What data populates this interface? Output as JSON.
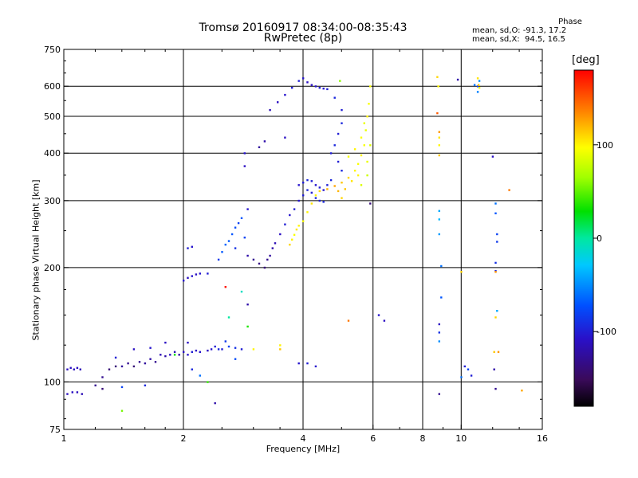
{
  "chart_data": {
    "type": "scatter",
    "title": "Tromsø 20160917 08:34:00-08:35:43",
    "subtitle": "RwPretec (8p)",
    "xlabel": "Frequency [MHz]",
    "ylabel": "Stationary phase Virtual Height [km]",
    "x_scale": "log",
    "y_scale": "log",
    "xlim": [
      1,
      16
    ],
    "ylim": [
      75,
      750
    ],
    "x_ticks": [
      "1",
      "2",
      "4",
      "6",
      "8",
      "10",
      "16"
    ],
    "x_tick_values": [
      1,
      2,
      4,
      6,
      8,
      10,
      16
    ],
    "x_gridlines": [
      2,
      4,
      6,
      8,
      10
    ],
    "y_ticks": [
      "750",
      "600",
      "500",
      "400",
      "300",
      "200",
      "100",
      "75"
    ],
    "y_tick_values": [
      750,
      600,
      500,
      400,
      300,
      200,
      100,
      75
    ],
    "y_gridlines": [
      100,
      200,
      300,
      400,
      500,
      600
    ],
    "grid": true,
    "phase_stats": {
      "heading": "Phase",
      "line_o": "mean, sd,O: -91.3, 17.2",
      "line_x": "mean, sd,X:  94.5, 16.5"
    },
    "colorbar": {
      "label": "[deg]",
      "range": [
        -180,
        180
      ],
      "ticks": [
        "100",
        "0",
        "-100"
      ],
      "tick_values": [
        100,
        0,
        -100
      ]
    },
    "series": [
      {
        "points": [
          [
            1.02,
            108,
            -110
          ],
          [
            1.04,
            109,
            -110
          ],
          [
            1.06,
            108,
            -112
          ],
          [
            1.08,
            109,
            -110
          ],
          [
            1.1,
            108,
            -115
          ],
          [
            1.02,
            93,
            -112
          ],
          [
            1.05,
            94,
            -110
          ],
          [
            1.08,
            94,
            -112
          ],
          [
            1.11,
            93,
            -115
          ],
          [
            1.2,
            98,
            -130
          ],
          [
            1.25,
            103,
            -130
          ],
          [
            1.3,
            108,
            -140
          ],
          [
            1.35,
            110,
            -140
          ],
          [
            1.4,
            110,
            -125
          ],
          [
            1.45,
            112,
            -130
          ],
          [
            1.5,
            110,
            -140
          ],
          [
            1.55,
            113,
            -130
          ],
          [
            1.6,
            112,
            -125
          ],
          [
            1.65,
            115,
            -120
          ],
          [
            1.7,
            113,
            -130
          ],
          [
            1.75,
            118,
            -115
          ],
          [
            1.8,
            117,
            -120
          ],
          [
            1.85,
            118,
            -110
          ],
          [
            1.9,
            120,
            -115
          ],
          [
            1.95,
            118,
            -120
          ],
          [
            2.0,
            120,
            -110
          ],
          [
            2.05,
            118,
            -105
          ],
          [
            2.1,
            120,
            -100
          ],
          [
            2.15,
            121,
            -110
          ],
          [
            2.2,
            120,
            -105
          ],
          [
            2.3,
            121,
            -110
          ],
          [
            2.35,
            122,
            -105
          ],
          [
            2.4,
            124,
            -100
          ],
          [
            2.45,
            122,
            -95
          ],
          [
            2.5,
            122,
            -100
          ],
          [
            2.55,
            128,
            -85
          ],
          [
            2.6,
            124,
            -80
          ],
          [
            2.7,
            123,
            -90
          ],
          [
            2.8,
            122,
            -100
          ],
          [
            1.35,
            116,
            -100
          ],
          [
            1.5,
            122,
            -110
          ],
          [
            1.65,
            123,
            -105
          ],
          [
            1.8,
            127,
            -110
          ],
          [
            2.05,
            127,
            -110
          ],
          [
            1.4,
            97,
            -80
          ],
          [
            1.6,
            98,
            -95
          ],
          [
            1.25,
            96,
            -140
          ],
          [
            2.0,
            185,
            -105
          ],
          [
            2.05,
            188,
            -110
          ],
          [
            2.1,
            190,
            -105
          ],
          [
            2.15,
            192,
            -110
          ],
          [
            2.2,
            193,
            -105
          ],
          [
            2.3,
            193,
            -100
          ],
          [
            2.05,
            225,
            -100
          ],
          [
            2.1,
            227,
            -105
          ],
          [
            2.45,
            210,
            -85
          ],
          [
            2.5,
            220,
            -70
          ],
          [
            2.55,
            230,
            -65
          ],
          [
            2.6,
            235,
            -70
          ],
          [
            2.65,
            245,
            -70
          ],
          [
            2.7,
            255,
            -75
          ],
          [
            2.75,
            262,
            -80
          ],
          [
            2.8,
            270,
            -70
          ],
          [
            2.85,
            240,
            -80
          ],
          [
            2.7,
            225,
            -90
          ],
          [
            2.9,
            215,
            -120
          ],
          [
            3.0,
            210,
            -130
          ],
          [
            3.1,
            205,
            -135
          ],
          [
            3.2,
            200,
            -140
          ],
          [
            3.25,
            210,
            -130
          ],
          [
            3.3,
            215,
            -125
          ],
          [
            3.35,
            225,
            -120
          ],
          [
            3.4,
            232,
            -115
          ],
          [
            3.5,
            245,
            -110
          ],
          [
            3.6,
            260,
            -100
          ],
          [
            3.7,
            275,
            -105
          ],
          [
            3.8,
            285,
            -100
          ],
          [
            3.9,
            300,
            -105
          ],
          [
            4.0,
            310,
            -100
          ],
          [
            4.1,
            320,
            -95
          ],
          [
            4.2,
            315,
            -100
          ],
          [
            4.3,
            305,
            -95
          ],
          [
            4.4,
            300,
            -100
          ],
          [
            4.5,
            298,
            -95
          ],
          [
            3.9,
            330,
            -105
          ],
          [
            4.0,
            335,
            -100
          ],
          [
            4.1,
            340,
            -95
          ],
          [
            4.2,
            338,
            -100
          ],
          [
            4.3,
            330,
            -105
          ],
          [
            4.4,
            325,
            -100
          ],
          [
            4.5,
            320,
            -105
          ],
          [
            4.6,
            330,
            -100
          ],
          [
            4.7,
            340,
            -95
          ],
          [
            3.3,
            520,
            -115
          ],
          [
            3.45,
            545,
            -110
          ],
          [
            3.6,
            570,
            -105
          ],
          [
            3.75,
            595,
            -100
          ],
          [
            3.9,
            620,
            -100
          ],
          [
            4.0,
            630,
            -105
          ],
          [
            4.1,
            615,
            -110
          ],
          [
            4.2,
            605,
            -110
          ],
          [
            4.3,
            600,
            -105
          ],
          [
            4.4,
            595,
            -100
          ],
          [
            4.5,
            592,
            -105
          ],
          [
            4.6,
            590,
            -100
          ],
          [
            3.2,
            430,
            -120
          ],
          [
            3.1,
            415,
            -125
          ],
          [
            4.7,
            400,
            -100
          ],
          [
            4.8,
            420,
            -95
          ],
          [
            4.9,
            450,
            -100
          ],
          [
            5.0,
            480,
            -95
          ],
          [
            5.0,
            520,
            -100
          ],
          [
            4.8,
            560,
            -95
          ],
          [
            4.9,
            380,
            -100
          ],
          [
            5.0,
            360,
            -95
          ],
          [
            2.85,
            370,
            -110
          ],
          [
            2.85,
            400,
            -105
          ],
          [
            2.9,
            285,
            -105
          ],
          [
            2.9,
            160,
            -120
          ],
          [
            3.6,
            440,
            -110
          ],
          [
            4.1,
            112,
            -100
          ],
          [
            4.3,
            110,
            -105
          ],
          [
            3.9,
            112,
            -105
          ],
          [
            6.2,
            150,
            -105
          ],
          [
            6.4,
            145,
            -110
          ],
          [
            8.8,
            93,
            -130
          ],
          [
            8.8,
            142,
            -110
          ],
          [
            8.8,
            135,
            -90
          ],
          [
            8.8,
            128,
            -50
          ],
          [
            8.8,
            282,
            -40
          ],
          [
            8.8,
            268,
            -35
          ],
          [
            8.8,
            245,
            -45
          ],
          [
            8.9,
            202,
            -60
          ],
          [
            9.8,
            625,
            -120
          ],
          [
            10.2,
            110,
            -100
          ],
          [
            10.6,
            104,
            -100
          ],
          [
            10.0,
            103,
            -60
          ],
          [
            10.4,
            108,
            -80
          ],
          [
            11.0,
            600,
            -80
          ],
          [
            11.1,
            620,
            -50
          ],
          [
            10.8,
            605,
            -60
          ],
          [
            11.0,
            580,
            -55
          ],
          [
            12.2,
            295,
            -60
          ],
          [
            12.2,
            278,
            -70
          ],
          [
            12.3,
            245,
            -80
          ],
          [
            12.3,
            234,
            -85
          ],
          [
            12.2,
            206,
            -90
          ],
          [
            12.2,
            196,
            -95
          ],
          [
            12.0,
            392,
            -110
          ],
          [
            12.1,
            108,
            -120
          ],
          [
            12.2,
            96,
            -130
          ],
          [
            2.1,
            108,
            -95
          ],
          [
            2.2,
            104,
            -60
          ],
          [
            2.7,
            115,
            -75
          ],
          [
            2.4,
            88,
            -120
          ]
        ]
      },
      {
        "points": [
          [
            3.7,
            230,
            110
          ],
          [
            3.75,
            237,
            100
          ],
          [
            3.8,
            244,
            95
          ],
          [
            3.85,
            252,
            105
          ],
          [
            3.9,
            258,
            100
          ],
          [
            4.0,
            265,
            95
          ],
          [
            4.1,
            280,
            100
          ],
          [
            4.2,
            295,
            105
          ],
          [
            4.3,
            310,
            100
          ],
          [
            4.4,
            318,
            110
          ],
          [
            4.6,
            322,
            120
          ],
          [
            4.8,
            328,
            125
          ],
          [
            5.0,
            335,
            115
          ],
          [
            5.2,
            345,
            110
          ],
          [
            5.4,
            360,
            100
          ],
          [
            5.5,
            375,
            95
          ],
          [
            5.6,
            395,
            100
          ],
          [
            5.7,
            420,
            95
          ],
          [
            5.75,
            460,
            90
          ],
          [
            5.8,
            500,
            100
          ],
          [
            5.85,
            540,
            95
          ],
          [
            5.9,
            600,
            95
          ],
          [
            5.3,
            338,
            105
          ],
          [
            5.5,
            350,
            100
          ],
          [
            5.8,
            380,
            90
          ],
          [
            5.9,
            420,
            85
          ],
          [
            5.6,
            440,
            95
          ],
          [
            5.7,
            480,
            90
          ],
          [
            5.2,
            392,
            95
          ],
          [
            5.4,
            410,
            100
          ],
          [
            4.9,
            318,
            120
          ],
          [
            5.1,
            322,
            115
          ],
          [
            5.0,
            305,
            110
          ],
          [
            5.6,
            330,
            85
          ],
          [
            5.8,
            350,
            80
          ],
          [
            8.7,
            635,
            110
          ],
          [
            8.8,
            455,
            130
          ],
          [
            8.8,
            440,
            105
          ],
          [
            8.8,
            420,
            100
          ],
          [
            8.8,
            395,
            115
          ],
          [
            8.7,
            510,
            150
          ],
          [
            8.75,
            600,
            100
          ],
          [
            11.0,
            630,
            105
          ],
          [
            11.05,
            605,
            115
          ],
          [
            11.1,
            595,
            95
          ],
          [
            12.2,
            148,
            110
          ],
          [
            12.1,
            120,
            115
          ],
          [
            12.2,
            195,
            130
          ],
          [
            12.4,
            120,
            130
          ],
          [
            13.2,
            320,
            140
          ],
          [
            14.2,
            95,
            125
          ],
          [
            3.0,
            122,
            100
          ],
          [
            3.5,
            122,
            115
          ],
          [
            3.5,
            125,
            100
          ],
          [
            5.2,
            145,
            140
          ],
          [
            1.4,
            84,
            55
          ],
          [
            2.3,
            100,
            40
          ],
          [
            1.9,
            118,
            30
          ],
          [
            2.8,
            173,
            -10
          ],
          [
            2.55,
            178,
            175
          ],
          [
            4.95,
            620,
            60
          ],
          [
            2.9,
            140,
            35
          ],
          [
            2.6,
            148,
            0
          ],
          [
            10.0,
            195,
            110
          ],
          [
            8.9,
            167,
            -70
          ],
          [
            5.9,
            295,
            -140
          ],
          [
            12.3,
            154,
            -40
          ]
        ]
      }
    ]
  }
}
